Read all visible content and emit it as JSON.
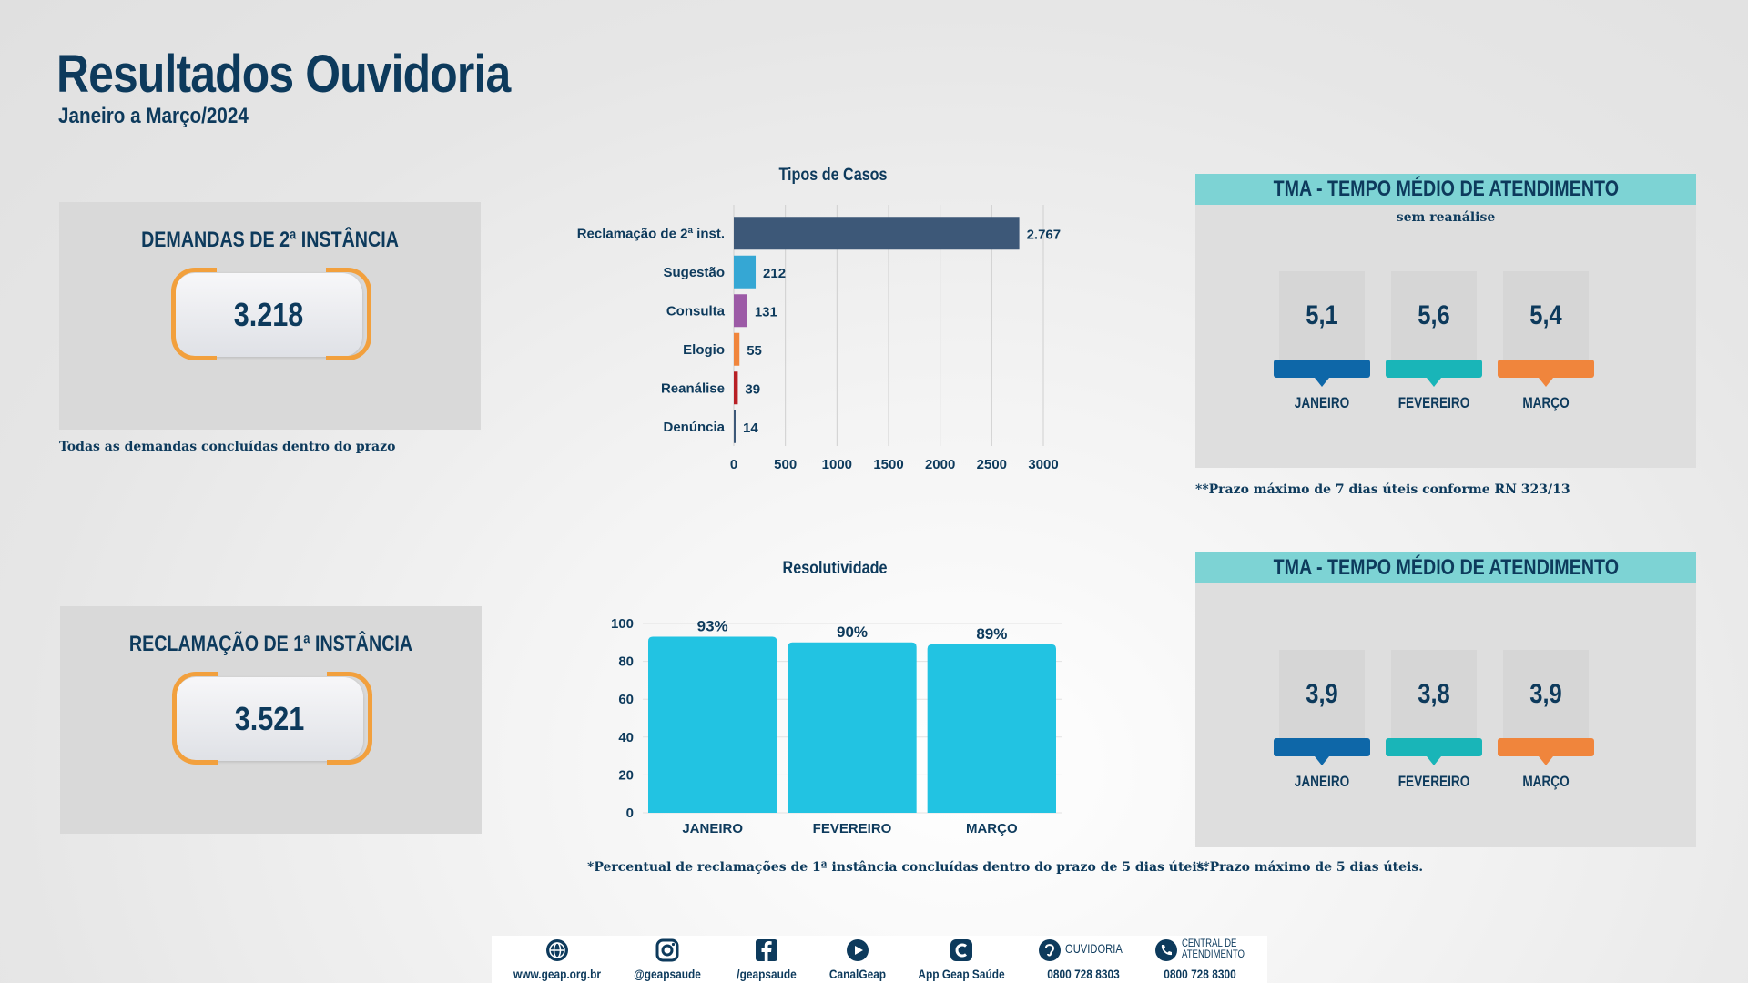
{
  "header": {
    "title": "Resultados Ouvidoria",
    "subtitle": "Janeiro a Março/2024"
  },
  "kpis": {
    "second_instance": {
      "title": "DEMANDAS DE 2ª INSTÂNCIA",
      "value": "3.218",
      "note": "Todas as demandas concluídas dentro do prazo"
    },
    "first_instance": {
      "title": "RECLAMAÇÃO DE 1ª INSTÂNCIA",
      "value": "3.521"
    }
  },
  "colors": {
    "navy": "#0d3a5c",
    "bracket_orange": "#f2a03d",
    "tma_header": "#7dd3d4",
    "january": "#0e67a8",
    "february": "#19b5b8",
    "march": "#f0853c",
    "resolutivity_bar": "#22c3e2"
  },
  "chart_data": [
    {
      "type": "bar",
      "orientation": "horizontal",
      "title": "Tipos de Casos",
      "categories": [
        "Reclamação de 2ª inst.",
        "Sugestão",
        "Consulta",
        "Elogio",
        "Reanálise",
        "Denúncia"
      ],
      "values": [
        2767,
        212,
        131,
        55,
        39,
        14
      ],
      "value_labels": [
        "2.767",
        "212",
        "131",
        "55",
        "39",
        "14"
      ],
      "bar_colors": [
        "#3d5878",
        "#35a7d4",
        "#9c5aa6",
        "#f0853c",
        "#b82025",
        "#3d5878"
      ],
      "xlim": [
        0,
        3000
      ],
      "xticks": [
        "0",
        "500",
        "1000",
        "1500",
        "2000",
        "2500",
        "3000"
      ],
      "grid": "vertical"
    },
    {
      "type": "bar",
      "title": "Resolutividade",
      "categories": [
        "JANEIRO",
        "FEVEREIRO",
        "MARÇO"
      ],
      "values": [
        93,
        90,
        89
      ],
      "value_labels": [
        "93%",
        "90%",
        "89%"
      ],
      "ylim": [
        0,
        100
      ],
      "yticks": [
        "0",
        "20",
        "40",
        "60",
        "80",
        "100"
      ],
      "grid": "horizontal",
      "note": "*Percentual de reclamações de 1ª instância concluídas dentro do prazo de 5 dias úteis."
    }
  ],
  "tma": [
    {
      "header": "TMA - TEMPO MÉDIO DE ATENDIMENTO",
      "subheader": "sem reanálise",
      "months": [
        {
          "label": "JANEIRO",
          "value": "5,1"
        },
        {
          "label": "FEVEREIRO",
          "value": "5,6"
        },
        {
          "label": "MARÇO",
          "value": "5,4"
        }
      ],
      "note": "**Prazo máximo de 7 dias úteis conforme RN 323/13"
    },
    {
      "header": "TMA - TEMPO MÉDIO DE ATENDIMENTO",
      "months": [
        {
          "label": "JANEIRO",
          "value": "3,9"
        },
        {
          "label": "FEVEREIRO",
          "value": "3,8"
        },
        {
          "label": "MARÇO",
          "value": "3,9"
        }
      ],
      "note": "**Prazo máximo de 5 dias úteis."
    }
  ],
  "footer": {
    "items": [
      {
        "icon": "globe-icon",
        "label": "www.geap.org.br"
      },
      {
        "icon": "instagram-icon",
        "label": "@geapsaude"
      },
      {
        "icon": "facebook-icon",
        "label": "/geapsaude"
      },
      {
        "icon": "youtube-icon",
        "label": "CanalGeap"
      },
      {
        "icon": "app-icon",
        "label": "App Geap Saúde"
      },
      {
        "icon": "ear-icon",
        "caption": "OUVIDORIA",
        "label": "0800 728 8303"
      },
      {
        "icon": "phone-icon",
        "caption": "CENTRAL DE ATENDIMENTO",
        "label": "0800 728 8300"
      }
    ]
  }
}
